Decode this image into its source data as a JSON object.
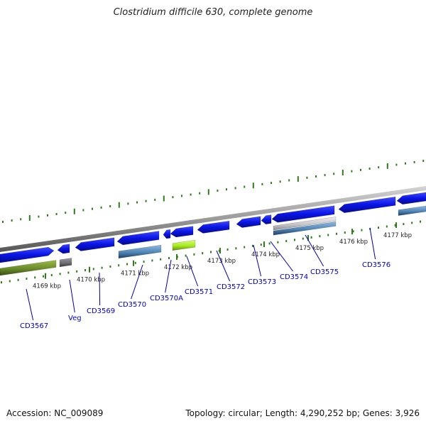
{
  "title": "Clostridium difficile 630, complete genome",
  "footer": {
    "accession": "Accession: NC_009089",
    "summary": "Topology: circular; Length: 4,290,252 bp; Genes: 3,926"
  },
  "colors": {
    "gene_blue": "#0a14e6",
    "steel_blue": "#4f86b7",
    "olive_green": "#6b8c2a",
    "lime_green": "#a7ea1e",
    "gray_feature": "#6f6f72",
    "light_gray_feature": "#c8c8cc",
    "tick_green": "#2f7d1a",
    "label_blue": "#0000cc",
    "backbone": "#9a9a9a"
  },
  "scale_labels": [
    "4169 kbp",
    "4170 kbp",
    "4171 kbp",
    "4172 kbp",
    "4173 kbp",
    "4174 kbp",
    "4175 kbp",
    "4176 kbp",
    "4177 kbp"
  ],
  "genes": [
    {
      "name": "CD3567"
    },
    {
      "name": "Veg"
    },
    {
      "name": "CD3569"
    },
    {
      "name": "CD3570"
    },
    {
      "name": "CD3570A"
    },
    {
      "name": "CD3571"
    },
    {
      "name": "CD3572"
    },
    {
      "name": "CD3573"
    },
    {
      "name": "CD3574"
    },
    {
      "name": "CD3575"
    },
    {
      "name": "CD3576"
    }
  ]
}
